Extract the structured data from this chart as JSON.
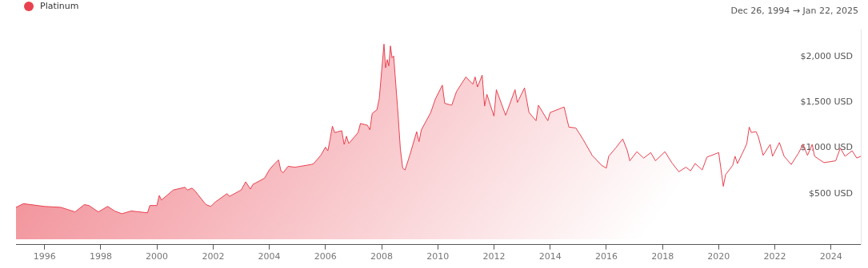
{
  "chart_data": {
    "type": "area",
    "subtitle": "Dec 26, 1994  →  Jan 22, 2025",
    "legend": "top left",
    "xlim": [
      "1994-12-26",
      "2025-01-22"
    ],
    "xticks": [
      {
        "value": "1996-01-01",
        "label": "1996"
      },
      {
        "value": "1998-01-01",
        "label": "1998"
      },
      {
        "value": "2000-01-01",
        "label": "2000"
      },
      {
        "value": "2002-01-01",
        "label": "2002"
      },
      {
        "value": "2004-01-01",
        "label": "2004"
      },
      {
        "value": "2006-01-01",
        "label": "2006"
      },
      {
        "value": "2008-01-01",
        "label": "2008"
      },
      {
        "value": "2010-01-01",
        "label": "2010"
      },
      {
        "value": "2012-01-01",
        "label": "2012"
      },
      {
        "value": "2014-01-01",
        "label": "2014"
      },
      {
        "value": "2016-01-01",
        "label": "2016"
      },
      {
        "value": "2018-01-01",
        "label": "2018"
      },
      {
        "value": "2020-01-01",
        "label": "2020"
      },
      {
        "value": "2022-01-01",
        "label": "2022"
      },
      {
        "value": "2024-01-01",
        "label": "2024"
      }
    ],
    "ylim": [
      -60,
      2300
    ],
    "yticks": [
      {
        "value": 500,
        "label": "$500 USD"
      },
      {
        "value": 1000,
        "label": "$1,000 USD"
      },
      {
        "value": 1500,
        "label": "$1,500 USD"
      },
      {
        "value": 2000,
        "label": "$2,000 USD"
      }
    ],
    "series": [
      {
        "name": "Platinum",
        "color": "#e8414f",
        "x": [
          "1994-12-26",
          "1995-04",
          "1996-01",
          "1996-08",
          "1997-02",
          "1997-06",
          "1997-08",
          "1997-12",
          "1998-04",
          "1998-07",
          "1998-10",
          "1999-02",
          "1999-09",
          "1999-10",
          "2000-01",
          "2000-02",
          "2000-03",
          "2000-08",
          "2001-01",
          "2001-02",
          "2001-04",
          "2001-05",
          "2001-09",
          "2001-10",
          "2001-12",
          "2002-02",
          "2002-07",
          "2002-08",
          "2003-01",
          "2003-03",
          "2003-05",
          "2003-06",
          "2003-11",
          "2004-01",
          "2004-03",
          "2004-05",
          "2004-06",
          "2004-07",
          "2004-09",
          "2004-12",
          "2005-07",
          "2005-08",
          "2005-11",
          "2006-01",
          "2006-02",
          "2006-03",
          "2006-04",
          "2006-05",
          "2006-08",
          "2006-09",
          "2006-10",
          "2006-11",
          "2007-03",
          "2007-04",
          "2007-07",
          "2007-08",
          "2007-09",
          "2007-11",
          "2007-12",
          "2008-02-01",
          "2008-02-22",
          "2008-03-14",
          "2008-04-04",
          "2008-04-25",
          "2008-05-16",
          "2008-06-06",
          "2008-08",
          "2008-09",
          "2008-10",
          "2008-11",
          "2009-01",
          "2009-04",
          "2009-05",
          "2009-06",
          "2009-10",
          "2009-12",
          "2010-03",
          "2010-04",
          "2010-07",
          "2010-09",
          "2011-01",
          "2011-04",
          "2011-05",
          "2011-06",
          "2011-08",
          "2011-09",
          "2011-10",
          "2012-01",
          "2012-02",
          "2012-06",
          "2012-10",
          "2012-11",
          "2013-02",
          "2013-04",
          "2013-07",
          "2013-08",
          "2013-12",
          "2014-01",
          "2014-07",
          "2014-09",
          "2014-12",
          "2015-03",
          "2015-07",
          "2015-11",
          "2016-01",
          "2016-02",
          "2016-05",
          "2016-08",
          "2016-10",
          "2016-11",
          "2017-02",
          "2017-05",
          "2017-08",
          "2017-10",
          "2018-02",
          "2018-05",
          "2018-08",
          "2018-11",
          "2019-01",
          "2019-03",
          "2019-06",
          "2019-08",
          "2020-01",
          "2020-02",
          "2020-03",
          "2020-04",
          "2020-07",
          "2020-08",
          "2020-09",
          "2020-12",
          "2021-01",
          "2021-02",
          "2021-03",
          "2021-05",
          "2021-06",
          "2021-08",
          "2021-11",
          "2021-12",
          "2022-03",
          "2022-05",
          "2022-08",
          "2022-11",
          "2023-01",
          "2023-03",
          "2023-05",
          "2023-06",
          "2023-10",
          "2024-03",
          "2024-05",
          "2024-07",
          "2024-10",
          "2024-12",
          "2025-01-22"
        ],
        "values": [
          350,
          390,
          360,
          350,
          300,
          380,
          370,
          300,
          360,
          310,
          280,
          310,
          290,
          370,
          370,
          480,
          430,
          540,
          570,
          540,
          560,
          540,
          410,
          380,
          360,
          410,
          500,
          470,
          540,
          630,
          550,
          600,
          670,
          760,
          820,
          870,
          750,
          730,
          800,
          790,
          820,
          830,
          920,
          1010,
          970,
          1090,
          1240,
          1170,
          1190,
          1040,
          1130,
          1050,
          1170,
          1270,
          1250,
          1200,
          1380,
          1420,
          1540,
          2140,
          1880,
          1970,
          1900,
          2120,
          1990,
          2010,
          1380,
          990,
          780,
          760,
          920,
          1180,
          1070,
          1200,
          1390,
          1540,
          1690,
          1490,
          1470,
          1620,
          1780,
          1700,
          1780,
          1670,
          1800,
          1460,
          1590,
          1350,
          1640,
          1360,
          1640,
          1500,
          1660,
          1390,
          1300,
          1470,
          1300,
          1390,
          1450,
          1230,
          1220,
          1100,
          920,
          810,
          780,
          910,
          1000,
          1100,
          970,
          860,
          960,
          890,
          950,
          860,
          960,
          840,
          740,
          790,
          750,
          830,
          760,
          900,
          950,
          760,
          580,
          710,
          810,
          910,
          830,
          990,
          1050,
          1230,
          1170,
          1180,
          1120,
          920,
          1040,
          910,
          1060,
          910,
          820,
          940,
          1040,
          920,
          1040,
          910,
          840,
          860,
          1000,
          910,
          970,
          890,
          910
        ]
      }
    ]
  }
}
